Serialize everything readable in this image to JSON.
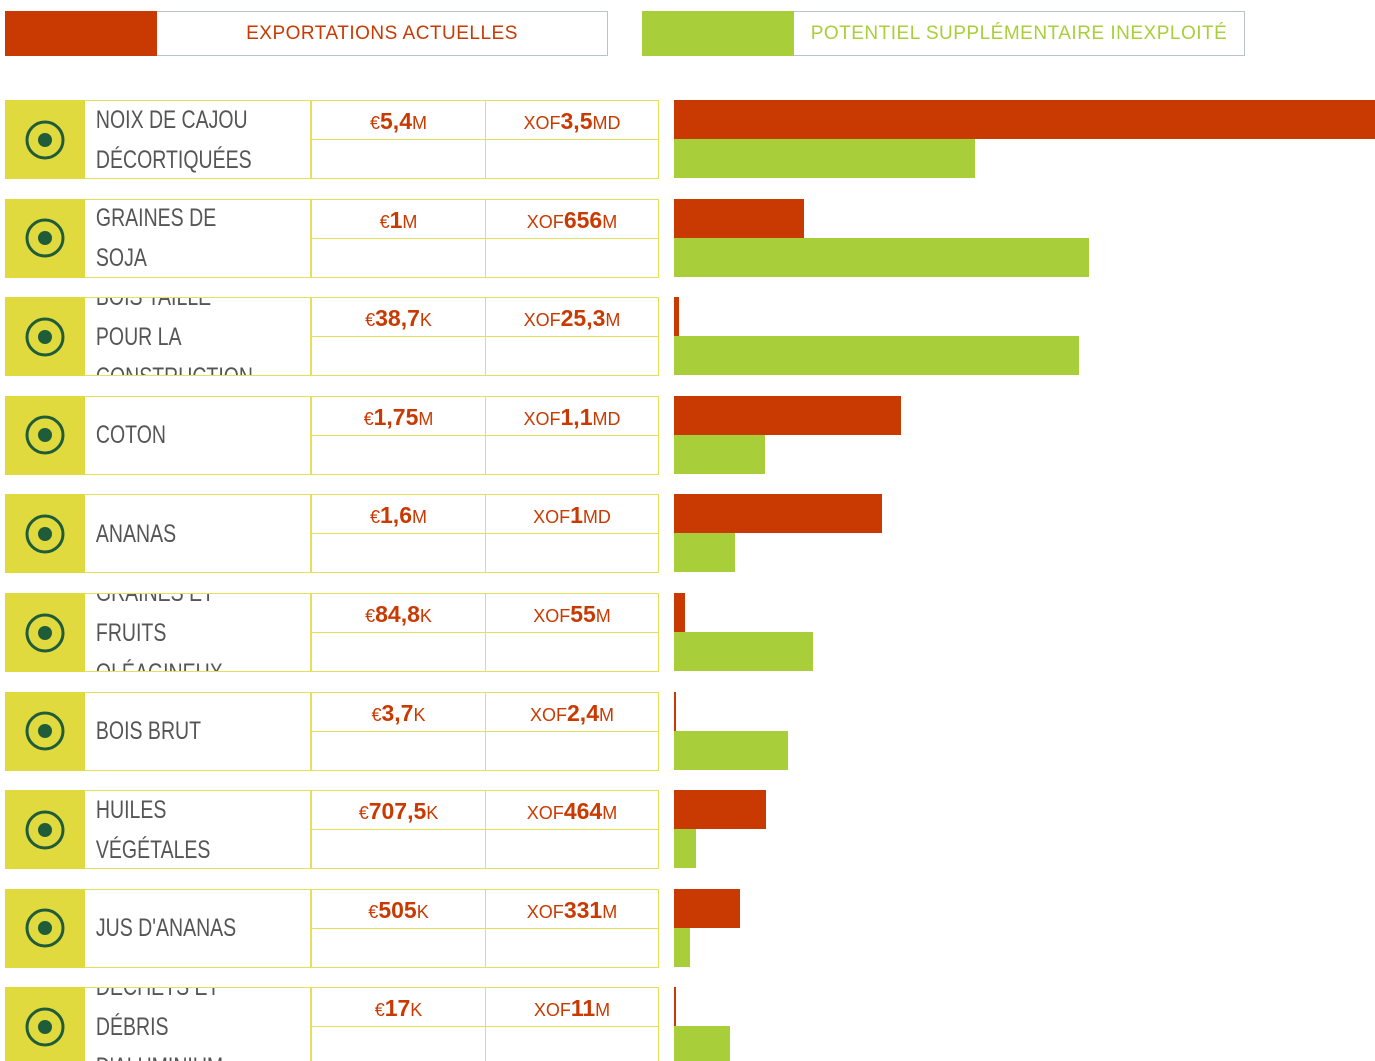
{
  "chart_data": {
    "type": "bar",
    "categories": [
      "NOIX DE CAJOU DÉCORTIQUÉES",
      "GRAINES DE SOJA",
      "BOIS TAILLÉ POUR LA CONSTRUCTION",
      "COTON",
      "ANANAS",
      "GRAINES ET FRUITS OLÉAGINEUX",
      "BOIS BRUT",
      "HUILES VÉGÉTALES",
      "JUS D'ANANAS",
      "DÉCHETS ET DÉBRIS D'ALUMINIUM"
    ],
    "series": [
      {
        "name": "EXPORTATIONS ACTUELLES",
        "color": "#c93a02",
        "values": [
          5.4,
          1,
          0.0387,
          1.75,
          1.6,
          0.0848,
          0.0037,
          0.7075,
          0.505,
          0.017
        ],
        "value_labels": [
          "€5,4M",
          "€1M",
          "€38,7K",
          "€1,75M",
          "€1,6M",
          "€84,8K",
          "€3,7K",
          "€707,5K",
          "€505K",
          "€17K"
        ],
        "xof_labels": [
          "XOF3,5MD",
          "XOF656M",
          "XOF25,3M",
          "XOF1,1MD",
          "XOF1MD",
          "XOF55M",
          "XOF2,4M",
          "XOF464M",
          "XOF331M",
          "XOF11M"
        ]
      },
      {
        "name": "POTENTIEL SUPPLÉMENTAIRE INEXPLOITÉ",
        "color": "#a8cf3a",
        "values": [
          2.32,
          3.2,
          3.12,
          0.7,
          0.47,
          1.07,
          0.88,
          0.17,
          0.12,
          0.43
        ]
      }
    ],
    "xlim": [
      0,
      5.4
    ]
  }
}
